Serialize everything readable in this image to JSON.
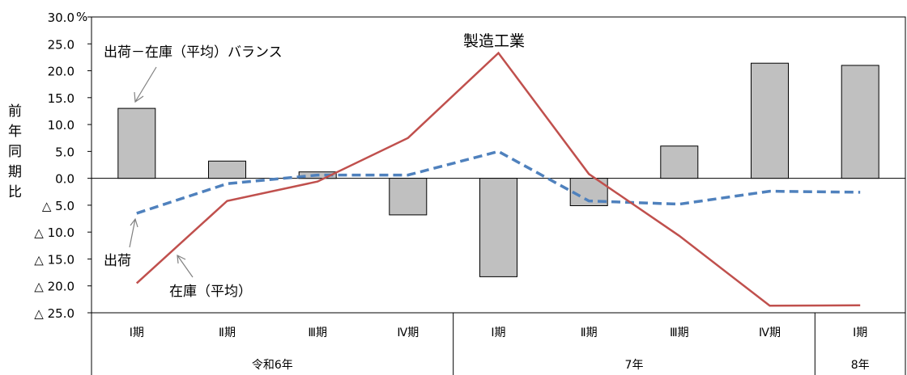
{
  "chart_data": {
    "type": "bar",
    "title": "製造工業",
    "ylabel_chars": [
      "前",
      "年",
      "同",
      "期",
      "比"
    ],
    "y_unit": "%",
    "ylim": [
      -25,
      30
    ],
    "y_ticks": [
      {
        "value": 30,
        "label": "30.0"
      },
      {
        "value": 25,
        "label": "25.0"
      },
      {
        "value": 20,
        "label": "20.0"
      },
      {
        "value": 15,
        "label": "15.0"
      },
      {
        "value": 10,
        "label": "10.0"
      },
      {
        "value": 5,
        "label": "5.0"
      },
      {
        "value": 0,
        "label": "0.0"
      },
      {
        "value": -5,
        "label": "△ 5.0"
      },
      {
        "value": -10,
        "label": "△ 10.0"
      },
      {
        "value": -15,
        "label": "△ 15.0"
      },
      {
        "value": -20,
        "label": "△ 20.0"
      },
      {
        "value": -25,
        "label": "△ 25.0"
      }
    ],
    "categories": [
      "Ⅰ期",
      "Ⅱ期",
      "Ⅲ期",
      "Ⅳ期",
      "Ⅰ期",
      "Ⅱ期",
      "Ⅲ期",
      "Ⅳ期",
      "Ⅰ期"
    ],
    "year_groups": [
      {
        "label": "令和6年",
        "span": 4
      },
      {
        "label": "7年",
        "span": 4
      },
      {
        "label": "8年",
        "span": 1
      }
    ],
    "series": [
      {
        "name": "出荷－在庫(平均)バランス",
        "kind": "bar",
        "color": "#c0c0c0",
        "values": [
          13.0,
          3.2,
          1.2,
          -6.8,
          -18.3,
          -5.1,
          6.0,
          21.4,
          21.0
        ]
      },
      {
        "name": "出荷",
        "kind": "line-dashed",
        "color": "#4f81bd",
        "values": [
          -6.5,
          -1.0,
          0.6,
          0.6,
          5.0,
          -4.2,
          -4.8,
          -2.4,
          -2.6
        ]
      },
      {
        "name": "在庫(平均)",
        "kind": "line",
        "color": "#c0504d",
        "values": [
          -19.5,
          -4.2,
          -0.6,
          7.5,
          23.3,
          0.8,
          -10.7,
          -23.7,
          -23.6
        ]
      }
    ],
    "annotations": {
      "balance": "出荷－在庫（平均）バランス",
      "shipment": "出荷",
      "inventory": "在庫（平均）"
    }
  }
}
